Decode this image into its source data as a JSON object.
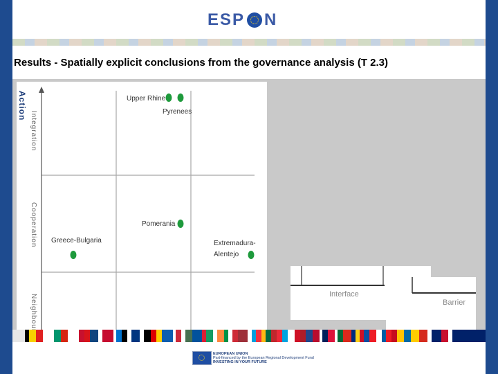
{
  "header": {
    "logo_left": "ESP",
    "logo_right": "N"
  },
  "slide": {
    "title": "Results - Spatially explicit conclusions from the governance analysis (T 2.3)"
  },
  "chart": {
    "y_axis_title": "Action",
    "y_levels": [
      "Integration",
      "Cooperation",
      "Neighbourhood"
    ],
    "cases": [
      {
        "name": "Upper Rhine"
      },
      {
        "name": "Pyrenees"
      },
      {
        "name": "Pomerania"
      },
      {
        "name": "Greece-Bulgaria"
      },
      {
        "name_line1": "Extremadura-",
        "name_line2": "Alentejo"
      }
    ],
    "dot_color": "#1e9a3c"
  },
  "legend": {
    "interface": "Interface",
    "barrier": "Barrier"
  },
  "footer": {
    "line1": "EUROPEAN UNION",
    "line2": "Part-financed by the European Regional Development Fund",
    "line3": "INVESTING IN YOUR FUTURE"
  }
}
